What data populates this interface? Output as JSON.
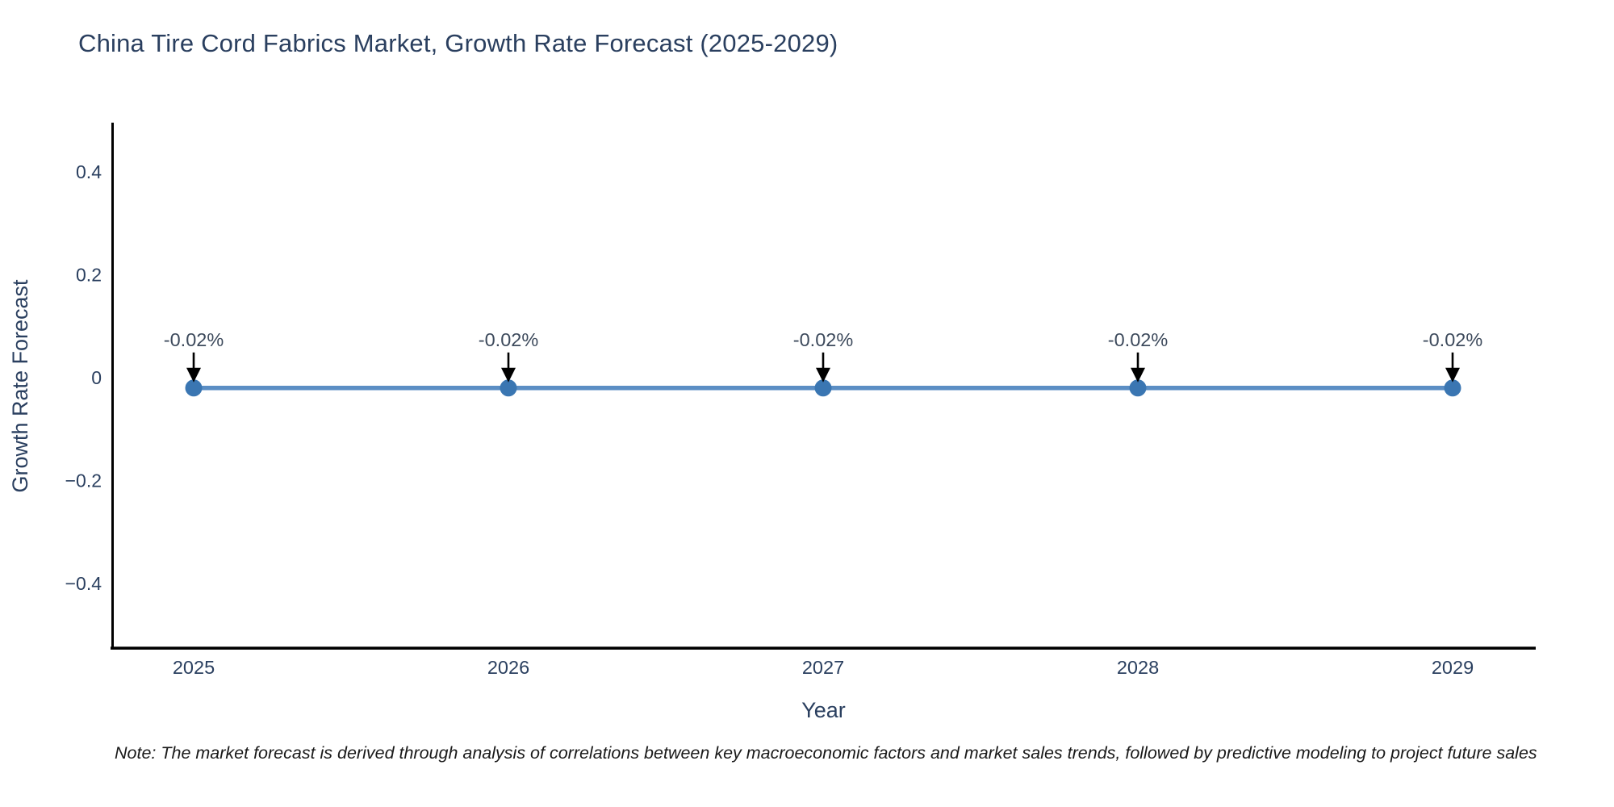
{
  "chart": {
    "title": "China Tire Cord Fabrics Market, Growth Rate Forecast (2025-2029)",
    "note": "Note: The market forecast is derived through analysis of correlations between key macroeconomic factors and market sales trends, followed by predictive modeling to project future sales",
    "colors": {
      "title_text": "#2a3f5f",
      "axis_line": "#000000",
      "tick_text": "#2a3f5f",
      "axis_title_text": "#2a3f5f",
      "series_line": "#5b8ec4",
      "marker_fill": "#3a76b2",
      "annotation_text": "#3d4a5c",
      "arrow": "#000000",
      "note_text": "#1a1a1a",
      "background": "#ffffff"
    }
  },
  "chart_data": {
    "type": "line",
    "title": "China Tire Cord Fabrics Market, Growth Rate Forecast (2025-2029)",
    "xlabel": "Year",
    "ylabel": "Growth Rate Forecast",
    "categories": [
      "2025",
      "2026",
      "2027",
      "2028",
      "2029"
    ],
    "series": [
      {
        "name": "Growth Rate Forecast",
        "values": [
          -0.02,
          -0.02,
          -0.02,
          -0.02,
          -0.02
        ]
      }
    ],
    "point_labels": [
      "-0.02%",
      "-0.02%",
      "-0.02%",
      "-0.02%",
      "-0.02%"
    ],
    "y_ticks": [
      {
        "label": "0.4",
        "value": 0.4
      },
      {
        "label": "0.2",
        "value": 0.2
      },
      {
        "label": "0",
        "value": 0
      },
      {
        "label": "−0.2",
        "value": -0.2
      },
      {
        "label": "−0.4",
        "value": -0.4
      }
    ],
    "ylim": [
      -0.52,
      0.48
    ],
    "grid": false,
    "legend": false,
    "annotation_arrows": "down-to-point"
  }
}
